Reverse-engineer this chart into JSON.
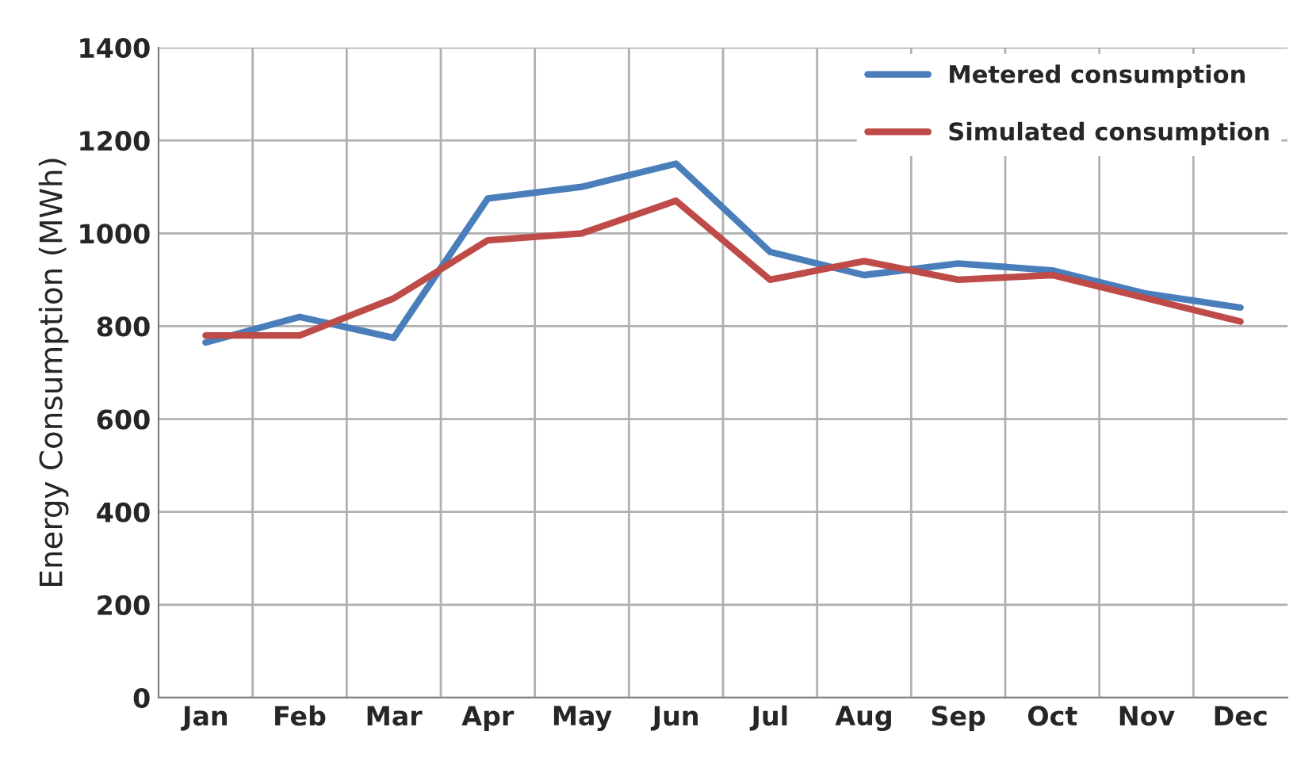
{
  "chart_data": {
    "type": "line",
    "ylabel": "Energy Consumption (MWh)",
    "categories": [
      "Jan",
      "Feb",
      "Mar",
      "Apr",
      "May",
      "Jun",
      "Jul",
      "Aug",
      "Sep",
      "Oct",
      "Nov",
      "Dec"
    ],
    "series": [
      {
        "name": "Metered consumption",
        "color": "#4a7ebb",
        "values": [
          765,
          820,
          775,
          1075,
          1100,
          1150,
          960,
          910,
          935,
          920,
          870,
          840
        ]
      },
      {
        "name": "Simulated consumption",
        "color": "#be4b48",
        "values": [
          780,
          780,
          860,
          985,
          1000,
          1070,
          900,
          940,
          900,
          910,
          860,
          810
        ]
      }
    ],
    "ylim": [
      0,
      1400
    ],
    "yticks": [
      0,
      200,
      400,
      600,
      800,
      1000,
      1200,
      1400
    ],
    "grid": true,
    "legend": "top right",
    "marker": "none",
    "line_style": "solid"
  }
}
